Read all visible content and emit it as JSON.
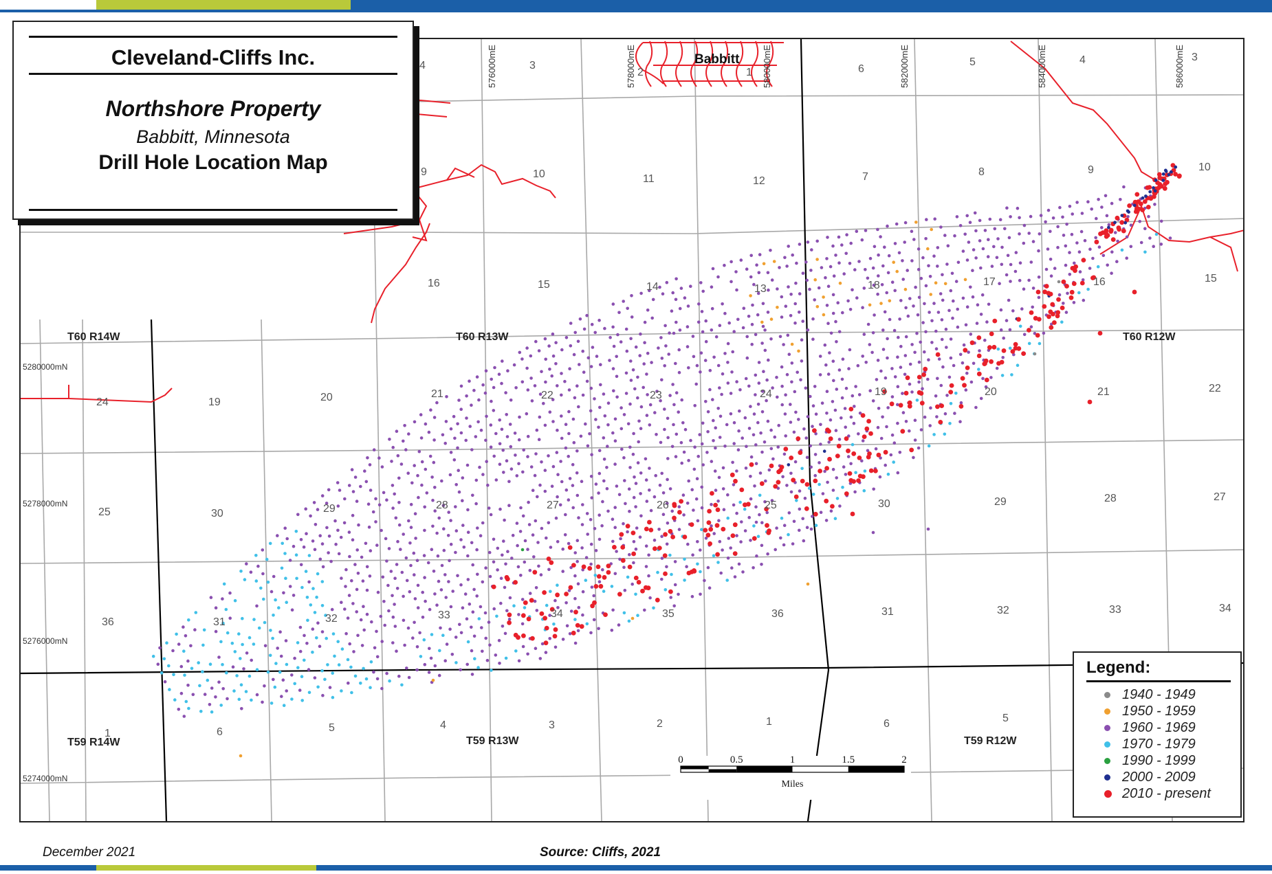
{
  "title_box": {
    "company": "Cleveland-Cliffs Inc.",
    "property": "Northshore Property",
    "location": "Babbitt, Minnesota",
    "map_title": "Drill Hole Location Map"
  },
  "town_label": "Babbitt",
  "eastings": [
    "576000mE",
    "578000mE",
    "580000mE",
    "582000mE",
    "584000mE",
    "586000mE"
  ],
  "northings": [
    "5280000mN",
    "5278000mN",
    "5276000mN",
    "5274000mN"
  ],
  "townships": [
    "T60 R14W",
    "T60 R13W",
    "T60 R12W",
    "T59 R14W",
    "T59 R13W",
    "T59 R12W"
  ],
  "sections": {
    "row1": [
      "4",
      "3",
      "2",
      "1",
      "6",
      "5",
      "4",
      "3"
    ],
    "row2": [
      "9",
      "10",
      "11",
      "12",
      "7",
      "8",
      "9",
      "10"
    ],
    "row3": [
      "16",
      "15",
      "14",
      "13",
      "18",
      "17",
      "16",
      "15"
    ],
    "row4": [
      "24",
      "19",
      "20",
      "21",
      "22",
      "23",
      "24",
      "19",
      "20",
      "21",
      "22"
    ],
    "row5": [
      "25",
      "30",
      "29",
      "28",
      "27",
      "26",
      "25",
      "30",
      "29",
      "28",
      "27"
    ],
    "row6": [
      "36",
      "31",
      "32",
      "33",
      "34",
      "35",
      "36",
      "31",
      "32",
      "33",
      "34"
    ],
    "row7": [
      "1",
      "6",
      "5",
      "4",
      "3",
      "2",
      "1",
      "6",
      "5"
    ]
  },
  "scale_bar": {
    "ticks": [
      "0",
      "0.5",
      "1",
      "1.5",
      "2"
    ],
    "unit": "Miles"
  },
  "legend": {
    "title": "Legend:",
    "items": [
      {
        "label": "1940 - 1949",
        "color": "#8a8a8a"
      },
      {
        "label": "1950 - 1959",
        "color": "#f0a030"
      },
      {
        "label": "1960 - 1969",
        "color": "#8a4fb0"
      },
      {
        "label": "1970 - 1979",
        "color": "#40c0e8"
      },
      {
        "label": "1990 - 1999",
        "color": "#2aa040"
      },
      {
        "label": "2000 - 2009",
        "color": "#1f2f90"
      },
      {
        "label": "2010 - present",
        "color": "#e8202a"
      }
    ]
  },
  "footer": {
    "date": "December 2021",
    "source": "Source: Cliffs, 2021"
  },
  "colors": {
    "road": "#e8202a",
    "township_line": "#000000",
    "section_line": "#a8a8a8",
    "stripe_blue": "#1b5fa8",
    "stripe_green": "#b9c93a"
  }
}
